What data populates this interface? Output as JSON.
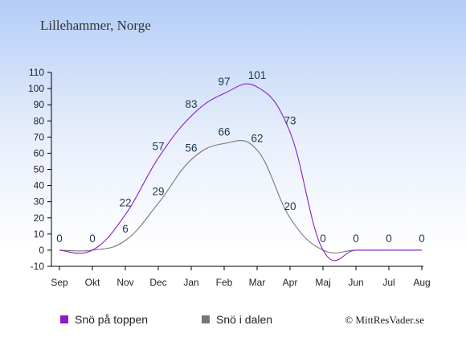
{
  "page_title": "Lillehammer, Norge",
  "copyright": "© MittResVader.se",
  "colors": {
    "top": "#8a1cc6",
    "valley": "#777777",
    "axis": "#000000"
  },
  "chart_data": {
    "type": "line",
    "title": "Lillehammer, Norge",
    "categories": [
      "Sep",
      "Okt",
      "Nov",
      "Dec",
      "Jan",
      "Feb",
      "Mar",
      "Apr",
      "Maj",
      "Jun",
      "Jul",
      "Aug"
    ],
    "series": [
      {
        "name": "Snö på toppen",
        "color": "#8a1cc6",
        "values": [
          0,
          0,
          22,
          57,
          83,
          97,
          101,
          73,
          0,
          0,
          0,
          0
        ]
      },
      {
        "name": "Snö i dalen",
        "color": "#777777",
        "values": [
          0,
          0,
          6,
          29,
          56,
          66,
          62,
          20,
          0,
          0,
          0,
          0
        ]
      }
    ],
    "ylim": [
      -10,
      110
    ],
    "yticks": [
      -10,
      0,
      10,
      20,
      30,
      40,
      50,
      60,
      70,
      80,
      90,
      100,
      110
    ],
    "legend_position": "bottom-left"
  }
}
